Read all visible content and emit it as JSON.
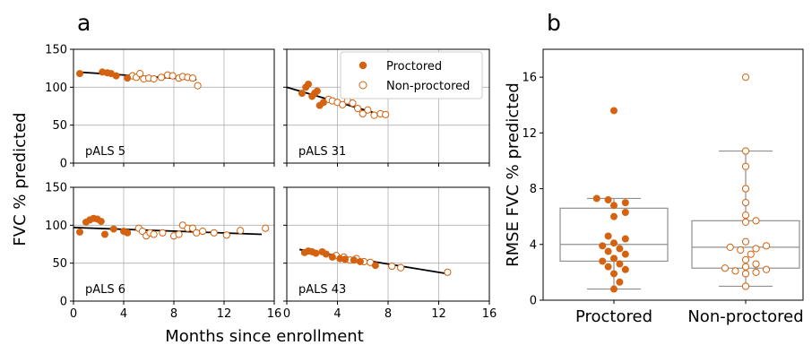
{
  "colors": {
    "proctored": "#d4620f",
    "trend": "#000000",
    "grid": "#b0b0b0",
    "box": "#909090"
  },
  "panel_a_label": "a",
  "panel_b_label": "b",
  "legend": {
    "proctored": "Proctored",
    "non_proctored": "Non-proctored"
  },
  "chart_data": [
    {
      "type": "scatter",
      "panel": "a",
      "ylabel": "FVC % predicted",
      "xlabel": "Months since enrollment",
      "xlim": [
        0,
        16
      ],
      "ylim": [
        0,
        150
      ],
      "xticks": [
        0,
        4,
        8,
        12,
        16
      ],
      "yticks": [
        0,
        50,
        100,
        150
      ],
      "xtick_labels": [
        "0",
        "4",
        "8",
        "12",
        "16"
      ],
      "ytick_labels": [
        "0",
        "50",
        "100",
        "150"
      ],
      "grid": true,
      "legend_position": "top-right of panel pALS 31",
      "subplots": [
        {
          "label": "pALS 5",
          "xlim": [
            0,
            12
          ],
          "proctored": [
            [
              0.5,
              118
            ],
            [
              2.3,
              120
            ],
            [
              2.7,
              119
            ],
            [
              3.0,
              118
            ],
            [
              3.4,
              115
            ],
            [
              4.3,
              112
            ]
          ],
          "non_proctored": [
            [
              4.7,
              115
            ],
            [
              5.0,
              113
            ],
            [
              5.3,
              118
            ],
            [
              5.6,
              111
            ],
            [
              6.0,
              112
            ],
            [
              6.4,
              111
            ],
            [
              7.0,
              113
            ],
            [
              7.5,
              116
            ],
            [
              7.9,
              115
            ],
            [
              8.4,
              112
            ],
            [
              8.7,
              114
            ],
            [
              9.1,
              113
            ],
            [
              9.5,
              112
            ],
            [
              9.9,
              102
            ]
          ],
          "trend": [
            [
              0.3,
              120
            ],
            [
              9.8,
              110
            ]
          ]
        },
        {
          "label": "pALS 31",
          "xlim": [
            0,
            9.5
          ],
          "proctored": [
            [
              1.2,
              92
            ],
            [
              1.5,
              100
            ],
            [
              1.7,
              104
            ],
            [
              2.0,
              88
            ],
            [
              2.2,
              92
            ],
            [
              2.4,
              95
            ],
            [
              2.6,
              76
            ],
            [
              2.9,
              80
            ]
          ],
          "non_proctored": [
            [
              3.3,
              84
            ],
            [
              3.6,
              82
            ],
            [
              4.0,
              80
            ],
            [
              4.4,
              77
            ],
            [
              4.8,
              82
            ],
            [
              5.2,
              79
            ],
            [
              5.6,
              72
            ],
            [
              6.0,
              65
            ],
            [
              6.4,
              70
            ],
            [
              6.9,
              63
            ],
            [
              7.4,
              65
            ],
            [
              7.8,
              64
            ]
          ],
          "trend": [
            [
              0,
              100
            ],
            [
              7.8,
              62
            ]
          ]
        },
        {
          "label": "pALS 6",
          "xlim": [
            0,
            16
          ],
          "proctored": [
            [
              0.5,
              91
            ],
            [
              1.0,
              104
            ],
            [
              1.3,
              107
            ],
            [
              1.6,
              109
            ],
            [
              1.9,
              108
            ],
            [
              2.2,
              105
            ],
            [
              2.5,
              88
            ],
            [
              3.2,
              95
            ],
            [
              4.0,
              92
            ],
            [
              4.3,
              90
            ]
          ],
          "non_proctored": [
            [
              5.2,
              96
            ],
            [
              5.5,
              92
            ],
            [
              5.8,
              86
            ],
            [
              6.1,
              90
            ],
            [
              6.4,
              88
            ],
            [
              7.1,
              90
            ],
            [
              8.0,
              86
            ],
            [
              8.4,
              88
            ],
            [
              8.7,
              100
            ],
            [
              9.1,
              96
            ],
            [
              9.5,
              96
            ],
            [
              9.8,
              90
            ],
            [
              10.3,
              92
            ],
            [
              11.2,
              90
            ],
            [
              12.2,
              87
            ],
            [
              13.3,
              93
            ],
            [
              15.3,
              96
            ]
          ],
          "trend": [
            [
              0,
              97
            ],
            [
              15,
              88
            ]
          ]
        },
        {
          "label": "pALS 43",
          "xlim": [
            0,
            16
          ],
          "proctored": [
            [
              1.4,
              64
            ],
            [
              1.7,
              66
            ],
            [
              2.0,
              65
            ],
            [
              2.3,
              63
            ],
            [
              2.8,
              65
            ],
            [
              3.1,
              62
            ],
            [
              3.6,
              58
            ],
            [
              4.2,
              56
            ],
            [
              4.6,
              55
            ],
            [
              5.3,
              54
            ],
            [
              5.8,
              52
            ],
            [
              7.0,
              47
            ]
          ],
          "non_proctored": [
            [
              3.9,
              60
            ],
            [
              4.5,
              58
            ],
            [
              5.0,
              54
            ],
            [
              5.5,
              56
            ],
            [
              6.1,
              52
            ],
            [
              6.6,
              51
            ],
            [
              8.3,
              46
            ],
            [
              9.0,
              44
            ],
            [
              12.7,
              38
            ]
          ],
          "trend": [
            [
              1,
              68
            ],
            [
              12.7,
              36
            ]
          ]
        }
      ]
    },
    {
      "type": "box",
      "panel": "b",
      "ylabel": "RMSE FVC % predicted",
      "ylim": [
        0,
        18
      ],
      "yticks": [
        0,
        4,
        8,
        12,
        16
      ],
      "ytick_labels": [
        "0",
        "4",
        "8",
        "12",
        "16"
      ],
      "categories": [
        "Proctored",
        "Non-proctored"
      ],
      "boxes": [
        {
          "whisker_low": 0.8,
          "q1": 2.8,
          "median": 4.0,
          "q3": 6.6,
          "whisker_high": 7.3
        },
        {
          "whisker_low": 1.0,
          "q1": 2.3,
          "median": 3.8,
          "q3": 5.7,
          "whisker_high": 10.7
        }
      ],
      "points": [
        [
          0.8,
          1.3,
          1.9,
          2.2,
          2.4,
          2.6,
          2.8,
          3.0,
          3.3,
          3.5,
          3.7,
          3.9,
          4.1,
          4.4,
          4.6,
          6.0,
          6.3,
          6.8,
          7.0,
          7.2,
          7.3,
          13.6
        ],
        [
          1.0,
          1.9,
          2.0,
          2.1,
          2.2,
          2.3,
          2.4,
          2.6,
          2.9,
          3.3,
          3.6,
          3.7,
          3.8,
          3.9,
          4.2,
          5.6,
          5.7,
          6.1,
          7.0,
          8.0,
          9.6,
          10.7,
          16.0
        ]
      ]
    }
  ]
}
